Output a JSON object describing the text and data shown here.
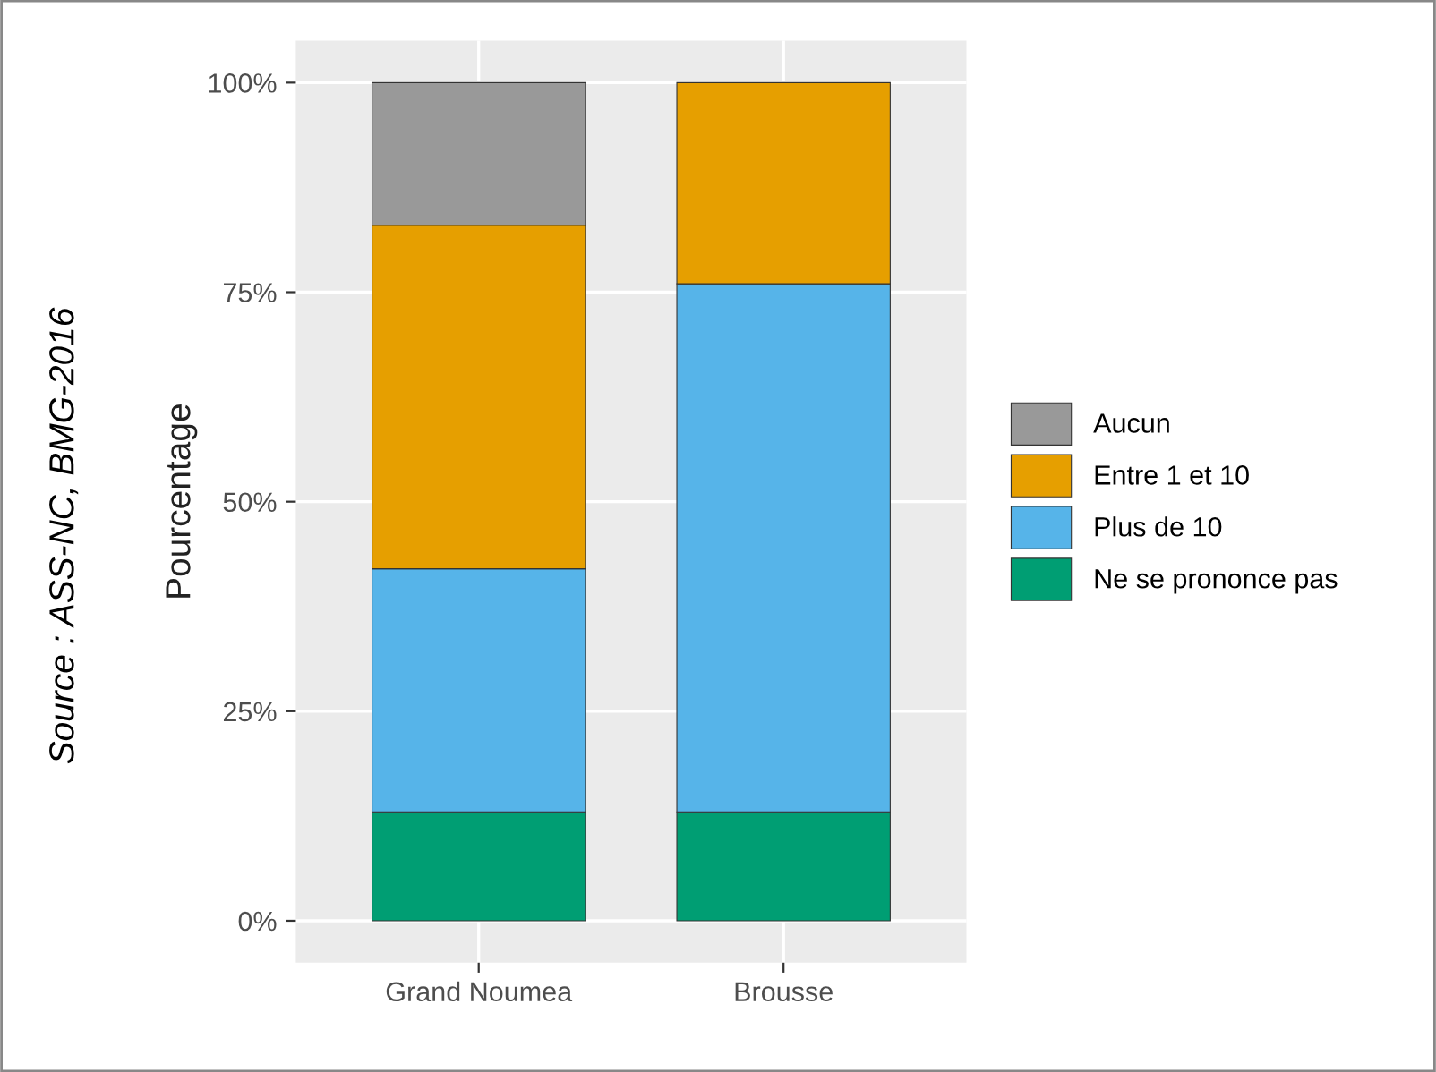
{
  "chart_data": {
    "type": "bar",
    "stacked": true,
    "ylabel": "Pourcentage",
    "categories": [
      "Grand Noumea",
      "Brousse"
    ],
    "series": [
      {
        "name": "Ne se prononce pas",
        "color": "#009e73",
        "values": [
          13,
          13
        ]
      },
      {
        "name": "Plus de 10",
        "color": "#56b4e9",
        "values": [
          29,
          63
        ]
      },
      {
        "name": "Entre 1 et 10",
        "color": "#e69f00",
        "values": [
          41,
          24
        ]
      },
      {
        "name": "Aucun",
        "color": "#999999",
        "values": [
          17,
          0
        ]
      }
    ],
    "ylim": [
      -5,
      105
    ],
    "yticks": [
      {
        "value": 0,
        "label": "0%"
      },
      {
        "value": 25,
        "label": "25%"
      },
      {
        "value": 50,
        "label": "50%"
      },
      {
        "value": 75,
        "label": "75%"
      },
      {
        "value": 100,
        "label": "100%"
      }
    ],
    "grid": true,
    "legend": "right",
    "annotations": [
      "Source : ASS-NC, BMG-2016"
    ]
  }
}
